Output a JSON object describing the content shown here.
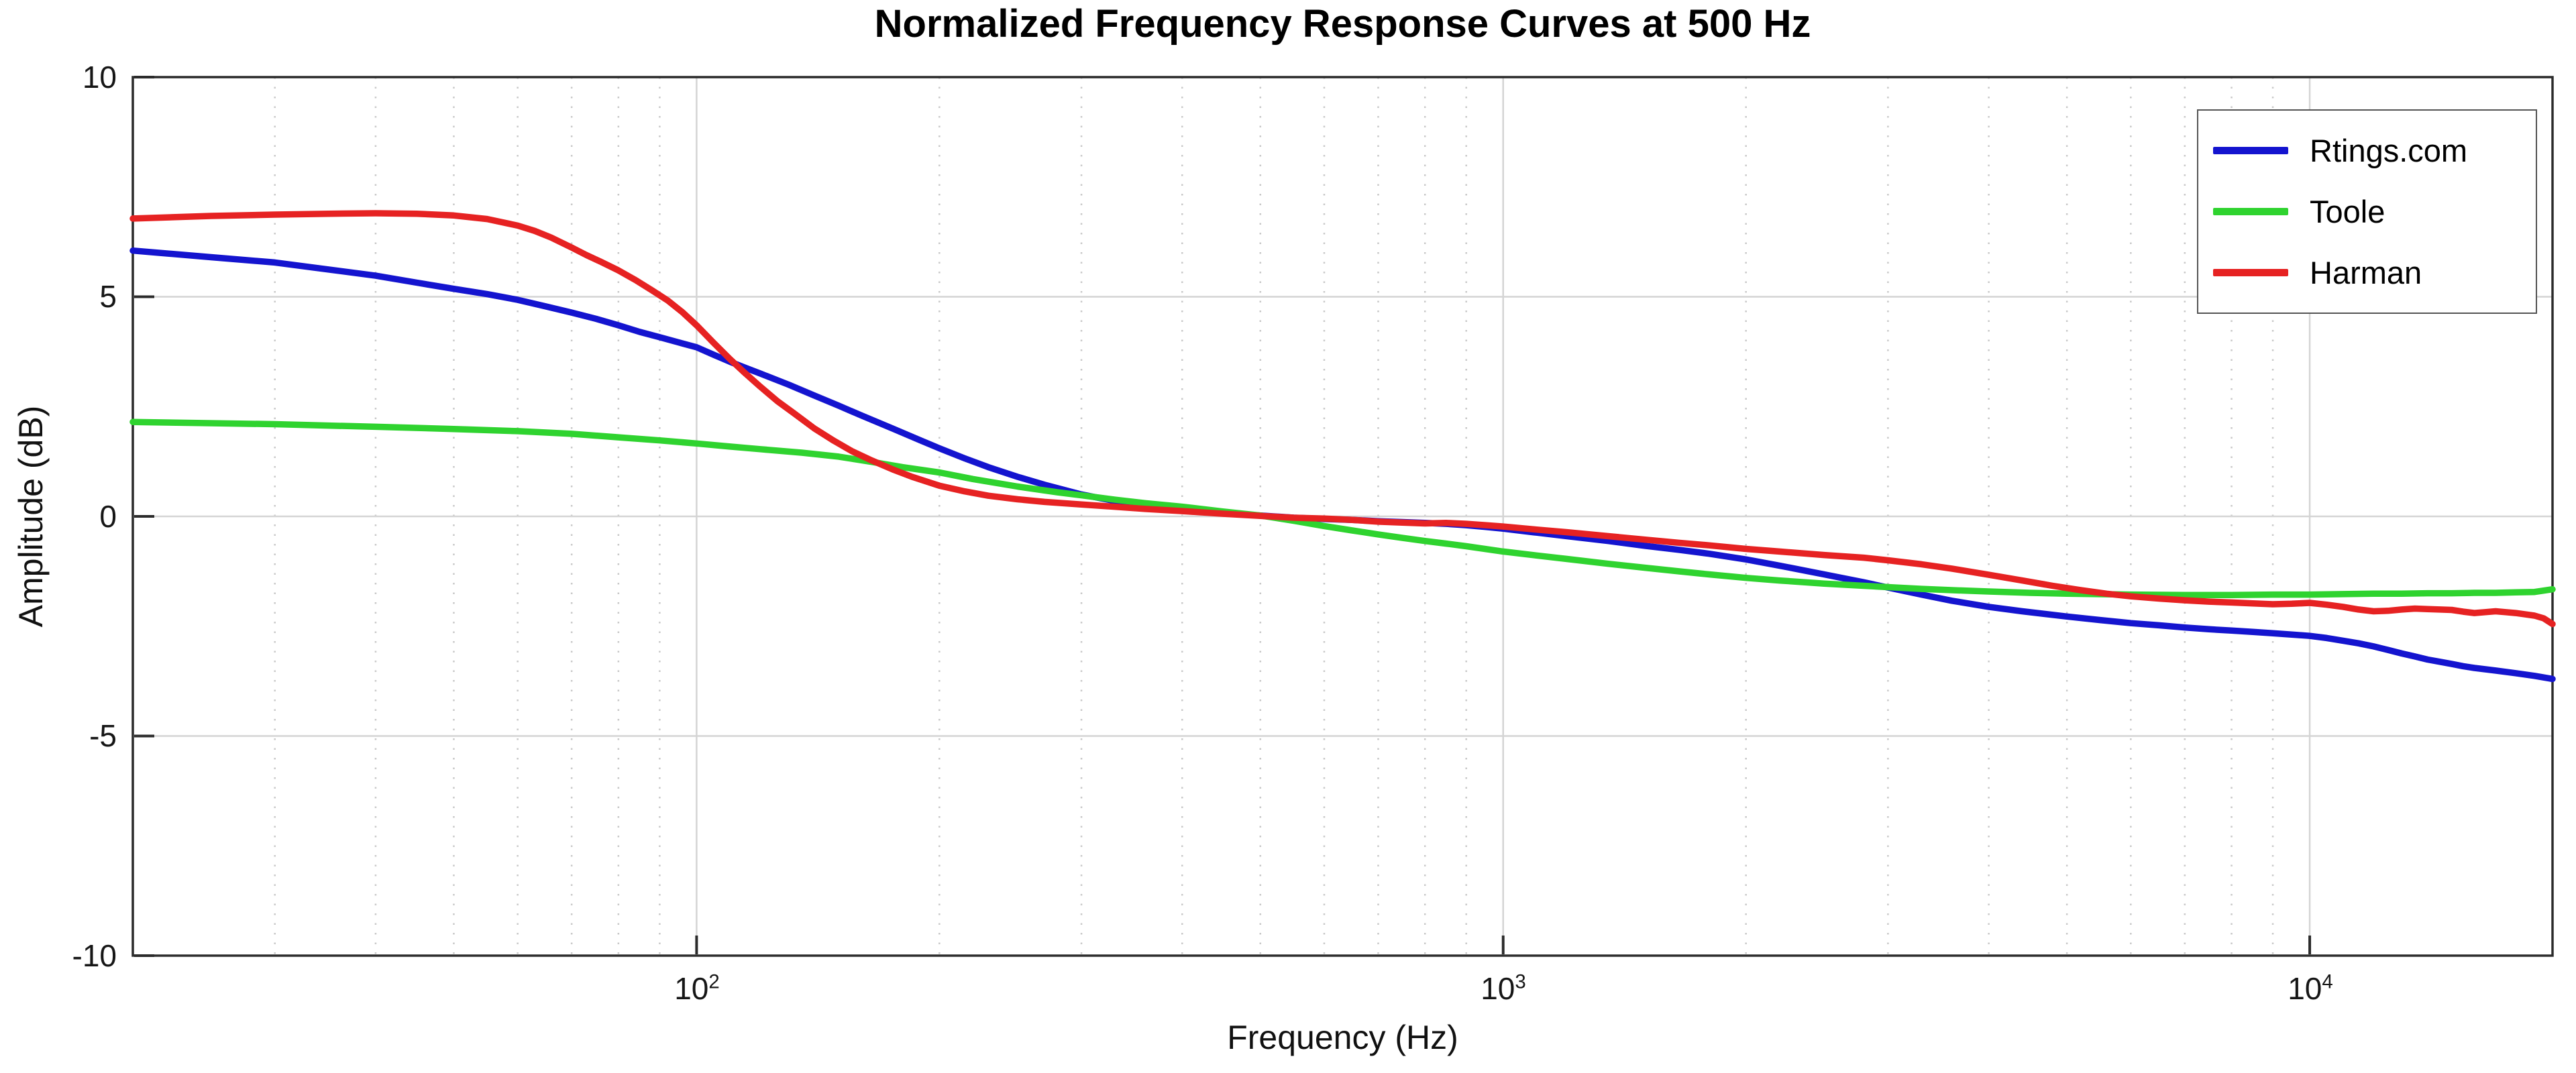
{
  "page": {
    "background": "#ffffff"
  },
  "chart_data": {
    "type": "line",
    "title": "Normalized Frequency Response Curves at 500 Hz",
    "xlabel": "Frequency (Hz)",
    "ylabel": "Amplitude (dB)",
    "x_scale": "log",
    "xlim": [
      20,
      20000
    ],
    "ylim": [
      -10,
      10
    ],
    "grid": true,
    "legend_position": "top-right",
    "yticks": [
      10,
      5,
      0,
      -5,
      -10
    ],
    "ytick_labels": [
      "10",
      "5",
      "0",
      "-5",
      "-10"
    ],
    "xticks": [
      100,
      1000,
      10000
    ],
    "xtick_base": "10",
    "xtick_exponents": [
      "2",
      "3",
      "4"
    ],
    "y_gridlines": [
      5,
      0,
      -5
    ],
    "minor_x_gridlines": [
      30,
      40,
      50,
      60,
      70,
      80,
      90,
      200,
      300,
      400,
      500,
      600,
      700,
      800,
      900,
      2000,
      3000,
      4000,
      5000,
      6000,
      7000,
      8000,
      9000,
      20000
    ],
    "colors": {
      "axis": "#2b2b2b",
      "major_grid": "#d4d4d4",
      "minor_grid": "#c8c8c8",
      "title": "#000000"
    },
    "series": [
      {
        "name": "Rtings.com",
        "color": "#1414cf",
        "points": [
          [
            20,
            6.05
          ],
          [
            25,
            5.9
          ],
          [
            30,
            5.78
          ],
          [
            35,
            5.62
          ],
          [
            40,
            5.48
          ],
          [
            45,
            5.32
          ],
          [
            50,
            5.18
          ],
          [
            55,
            5.06
          ],
          [
            60,
            4.93
          ],
          [
            65,
            4.78
          ],
          [
            70,
            4.64
          ],
          [
            75,
            4.5
          ],
          [
            80,
            4.35
          ],
          [
            85,
            4.2
          ],
          [
            90,
            4.08
          ],
          [
            95,
            3.96
          ],
          [
            100,
            3.85
          ],
          [
            105,
            3.68
          ],
          [
            110,
            3.52
          ],
          [
            115,
            3.38
          ],
          [
            120,
            3.25
          ],
          [
            130,
            3.0
          ],
          [
            140,
            2.75
          ],
          [
            150,
            2.52
          ],
          [
            160,
            2.3
          ],
          [
            175,
            2.0
          ],
          [
            190,
            1.72
          ],
          [
            200,
            1.55
          ],
          [
            215,
            1.32
          ],
          [
            230,
            1.12
          ],
          [
            250,
            0.9
          ],
          [
            270,
            0.72
          ],
          [
            300,
            0.5
          ],
          [
            330,
            0.35
          ],
          [
            360,
            0.25
          ],
          [
            400,
            0.16
          ],
          [
            450,
            0.07
          ],
          [
            500,
            0.02
          ],
          [
            550,
            -0.03
          ],
          [
            600,
            -0.06
          ],
          [
            650,
            -0.08
          ],
          [
            700,
            -0.11
          ],
          [
            750,
            -0.13
          ],
          [
            800,
            -0.15
          ],
          [
            850,
            -0.17
          ],
          [
            900,
            -0.2
          ],
          [
            950,
            -0.24
          ],
          [
            1000,
            -0.28
          ],
          [
            1100,
            -0.37
          ],
          [
            1200,
            -0.45
          ],
          [
            1350,
            -0.56
          ],
          [
            1500,
            -0.67
          ],
          [
            1650,
            -0.76
          ],
          [
            1800,
            -0.85
          ],
          [
            2000,
            -0.98
          ],
          [
            2200,
            -1.12
          ],
          [
            2500,
            -1.32
          ],
          [
            2800,
            -1.5
          ],
          [
            3000,
            -1.62
          ],
          [
            3300,
            -1.78
          ],
          [
            3600,
            -1.92
          ],
          [
            4000,
            -2.06
          ],
          [
            4400,
            -2.16
          ],
          [
            5000,
            -2.28
          ],
          [
            5500,
            -2.36
          ],
          [
            6000,
            -2.43
          ],
          [
            6500,
            -2.48
          ],
          [
            7000,
            -2.53
          ],
          [
            7500,
            -2.57
          ],
          [
            8000,
            -2.6
          ],
          [
            8500,
            -2.63
          ],
          [
            9000,
            -2.66
          ],
          [
            9500,
            -2.69
          ],
          [
            10000,
            -2.72
          ],
          [
            10500,
            -2.77
          ],
          [
            11000,
            -2.83
          ],
          [
            11500,
            -2.89
          ],
          [
            12000,
            -2.96
          ],
          [
            12500,
            -3.04
          ],
          [
            13000,
            -3.12
          ],
          [
            13500,
            -3.19
          ],
          [
            14000,
            -3.26
          ],
          [
            14500,
            -3.31
          ],
          [
            15000,
            -3.36
          ],
          [
            15500,
            -3.41
          ],
          [
            16000,
            -3.45
          ],
          [
            17000,
            -3.51
          ],
          [
            18000,
            -3.57
          ],
          [
            19000,
            -3.63
          ],
          [
            20000,
            -3.7
          ]
        ]
      },
      {
        "name": "Toole",
        "color": "#2fd32f",
        "points": [
          [
            20,
            2.15
          ],
          [
            30,
            2.1
          ],
          [
            40,
            2.04
          ],
          [
            50,
            1.99
          ],
          [
            60,
            1.94
          ],
          [
            70,
            1.88
          ],
          [
            80,
            1.8
          ],
          [
            90,
            1.73
          ],
          [
            100,
            1.66
          ],
          [
            110,
            1.59
          ],
          [
            120,
            1.53
          ],
          [
            135,
            1.45
          ],
          [
            150,
            1.36
          ],
          [
            165,
            1.24
          ],
          [
            180,
            1.12
          ],
          [
            200,
            1.0
          ],
          [
            220,
            0.85
          ],
          [
            250,
            0.68
          ],
          [
            280,
            0.55
          ],
          [
            300,
            0.48
          ],
          [
            330,
            0.38
          ],
          [
            360,
            0.3
          ],
          [
            400,
            0.22
          ],
          [
            450,
            0.11
          ],
          [
            500,
            0.02
          ],
          [
            550,
            -0.1
          ],
          [
            600,
            -0.22
          ],
          [
            650,
            -0.32
          ],
          [
            700,
            -0.41
          ],
          [
            750,
            -0.49
          ],
          [
            800,
            -0.56
          ],
          [
            850,
            -0.62
          ],
          [
            900,
            -0.68
          ],
          [
            1000,
            -0.8
          ],
          [
            1100,
            -0.89
          ],
          [
            1200,
            -0.97
          ],
          [
            1350,
            -1.08
          ],
          [
            1500,
            -1.17
          ],
          [
            1650,
            -1.25
          ],
          [
            1800,
            -1.32
          ],
          [
            2000,
            -1.4
          ],
          [
            2200,
            -1.46
          ],
          [
            2500,
            -1.53
          ],
          [
            2800,
            -1.58
          ],
          [
            3000,
            -1.61
          ],
          [
            3300,
            -1.65
          ],
          [
            3600,
            -1.68
          ],
          [
            4000,
            -1.71
          ],
          [
            4500,
            -1.74
          ],
          [
            5000,
            -1.76
          ],
          [
            6000,
            -1.78
          ],
          [
            7000,
            -1.79
          ],
          [
            8000,
            -1.79
          ],
          [
            9000,
            -1.78
          ],
          [
            10000,
            -1.78
          ],
          [
            11000,
            -1.77
          ],
          [
            12000,
            -1.76
          ],
          [
            13000,
            -1.76
          ],
          [
            14000,
            -1.75
          ],
          [
            15000,
            -1.75
          ],
          [
            16000,
            -1.74
          ],
          [
            17000,
            -1.74
          ],
          [
            18000,
            -1.73
          ],
          [
            19000,
            -1.72
          ],
          [
            20000,
            -1.66
          ]
        ]
      },
      {
        "name": "Harman",
        "color": "#e62222",
        "points": [
          [
            20,
            6.78
          ],
          [
            25,
            6.84
          ],
          [
            30,
            6.87
          ],
          [
            35,
            6.89
          ],
          [
            40,
            6.9
          ],
          [
            45,
            6.89
          ],
          [
            50,
            6.85
          ],
          [
            55,
            6.77
          ],
          [
            60,
            6.62
          ],
          [
            63,
            6.5
          ],
          [
            66,
            6.35
          ],
          [
            70,
            6.12
          ],
          [
            73,
            5.95
          ],
          [
            76,
            5.8
          ],
          [
            80,
            5.6
          ],
          [
            84,
            5.38
          ],
          [
            88,
            5.15
          ],
          [
            92,
            4.92
          ],
          [
            96,
            4.65
          ],
          [
            100,
            4.35
          ],
          [
            105,
            3.95
          ],
          [
            110,
            3.58
          ],
          [
            115,
            3.25
          ],
          [
            120,
            2.95
          ],
          [
            126,
            2.62
          ],
          [
            132,
            2.35
          ],
          [
            140,
            2.0
          ],
          [
            148,
            1.72
          ],
          [
            156,
            1.48
          ],
          [
            165,
            1.27
          ],
          [
            175,
            1.07
          ],
          [
            185,
            0.9
          ],
          [
            200,
            0.7
          ],
          [
            215,
            0.57
          ],
          [
            230,
            0.47
          ],
          [
            250,
            0.39
          ],
          [
            270,
            0.33
          ],
          [
            300,
            0.27
          ],
          [
            330,
            0.22
          ],
          [
            360,
            0.17
          ],
          [
            400,
            0.12
          ],
          [
            450,
            0.06
          ],
          [
            500,
            0.01
          ],
          [
            550,
            -0.03
          ],
          [
            600,
            -0.05
          ],
          [
            650,
            -0.08
          ],
          [
            700,
            -0.12
          ],
          [
            750,
            -0.14
          ],
          [
            800,
            -0.16
          ],
          [
            850,
            -0.15
          ],
          [
            900,
            -0.17
          ],
          [
            950,
            -0.2
          ],
          [
            1000,
            -0.23
          ],
          [
            1100,
            -0.3
          ],
          [
            1200,
            -0.36
          ],
          [
            1350,
            -0.45
          ],
          [
            1500,
            -0.53
          ],
          [
            1650,
            -0.6
          ],
          [
            1800,
            -0.66
          ],
          [
            2000,
            -0.74
          ],
          [
            2200,
            -0.8
          ],
          [
            2500,
            -0.88
          ],
          [
            2800,
            -0.94
          ],
          [
            3000,
            -1.0
          ],
          [
            3300,
            -1.09
          ],
          [
            3600,
            -1.19
          ],
          [
            4000,
            -1.33
          ],
          [
            4400,
            -1.46
          ],
          [
            4800,
            -1.58
          ],
          [
            5200,
            -1.68
          ],
          [
            5600,
            -1.76
          ],
          [
            6000,
            -1.82
          ],
          [
            6500,
            -1.87
          ],
          [
            7000,
            -1.91
          ],
          [
            7500,
            -1.94
          ],
          [
            8000,
            -1.96
          ],
          [
            8500,
            -1.98
          ],
          [
            9000,
            -2.0
          ],
          [
            9500,
            -1.99
          ],
          [
            10000,
            -1.97
          ],
          [
            10500,
            -2.01
          ],
          [
            11000,
            -2.06
          ],
          [
            11500,
            -2.12
          ],
          [
            12000,
            -2.16
          ],
          [
            12500,
            -2.15
          ],
          [
            13000,
            -2.12
          ],
          [
            13500,
            -2.1
          ],
          [
            14000,
            -2.11
          ],
          [
            14500,
            -2.12
          ],
          [
            15000,
            -2.13
          ],
          [
            15500,
            -2.17
          ],
          [
            16000,
            -2.2
          ],
          [
            16500,
            -2.18
          ],
          [
            17000,
            -2.16
          ],
          [
            17500,
            -2.18
          ],
          [
            18000,
            -2.2
          ],
          [
            18500,
            -2.23
          ],
          [
            19000,
            -2.26
          ],
          [
            19500,
            -2.32
          ],
          [
            20000,
            -2.45
          ]
        ]
      }
    ]
  }
}
